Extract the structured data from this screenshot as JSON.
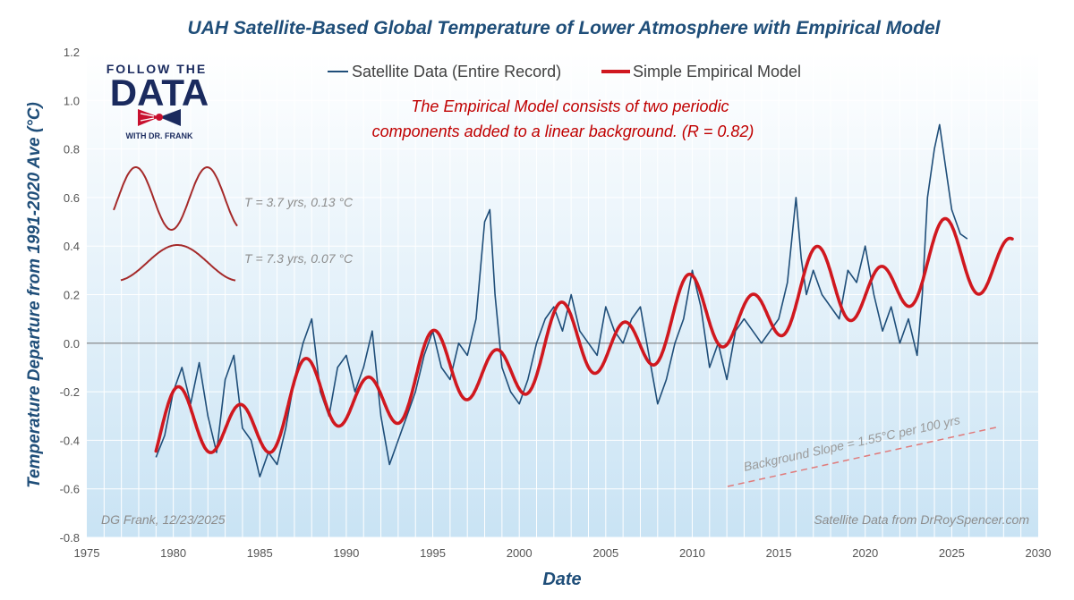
{
  "colors": {
    "satellite": "#1f4e79",
    "model": "#d0181f",
    "annotation": "#c00000",
    "axis_title": "#1f4e79",
    "component": "#a52a2a",
    "slope_line": "#e07a7a",
    "plot_bg_top": "#ffffff",
    "plot_bg_bottom": "#c9e3f4",
    "logo_navy": "#1a2a5e",
    "logo_red": "#c8102e"
  },
  "logo": {
    "top_text": "FOLLOW THE",
    "main_text": "DATA",
    "bottom_text": "WITH DR. FRANK"
  },
  "chart_data": {
    "type": "line",
    "title": "UAH Satellite-Based Global Temperature of Lower Atmosphere with Empirical Model",
    "xlabel": "Date",
    "ylabel": "Temperature Departure from 1991-2020 Ave (°C)",
    "xlim": [
      1975,
      2030
    ],
    "ylim": [
      -0.8,
      1.2
    ],
    "x_ticks": [
      1975,
      1980,
      1985,
      1990,
      1995,
      2000,
      2005,
      2010,
      2015,
      2020,
      2025,
      2030
    ],
    "y_ticks": [
      -0.8,
      -0.6,
      -0.4,
      -0.2,
      0.0,
      0.2,
      0.4,
      0.6,
      0.8,
      1.0,
      1.2
    ],
    "y_tick_labels": [
      "-0.8",
      "-0.6",
      "-0.4",
      "-0.2",
      "0.0",
      "0.2",
      "0.4",
      "0.6",
      "0.8",
      "1.0",
      "1.2"
    ],
    "legend_position": "top-center",
    "series": [
      {
        "name": "Satellite Data (Entire Record)",
        "style": "thin-line",
        "x": [
          1979.0,
          1979.5,
          1980.0,
          1980.5,
          1981.0,
          1981.5,
          1982.0,
          1982.5,
          1983.0,
          1983.5,
          1984.0,
          1984.5,
          1985.0,
          1985.5,
          1986.0,
          1986.5,
          1987.0,
          1987.5,
          1988.0,
          1988.5,
          1989.0,
          1989.5,
          1990.0,
          1990.5,
          1991.0,
          1991.5,
          1992.0,
          1992.5,
          1993.0,
          1993.5,
          1994.0,
          1994.5,
          1995.0,
          1995.5,
          1996.0,
          1996.5,
          1997.0,
          1997.5,
          1998.0,
          1998.3,
          1998.6,
          1999.0,
          1999.5,
          2000.0,
          2000.5,
          2001.0,
          2001.5,
          2002.0,
          2002.5,
          2003.0,
          2003.5,
          2004.0,
          2004.5,
          2005.0,
          2005.5,
          2006.0,
          2006.5,
          2007.0,
          2007.5,
          2008.0,
          2008.5,
          2009.0,
          2009.5,
          2010.0,
          2010.5,
          2011.0,
          2011.5,
          2012.0,
          2012.5,
          2013.0,
          2013.5,
          2014.0,
          2014.5,
          2015.0,
          2015.5,
          2016.0,
          2016.3,
          2016.6,
          2017.0,
          2017.5,
          2018.0,
          2018.5,
          2019.0,
          2019.5,
          2020.0,
          2020.5,
          2021.0,
          2021.5,
          2022.0,
          2022.5,
          2023.0,
          2023.3,
          2023.6,
          2024.0,
          2024.3,
          2024.6,
          2025.0,
          2025.5,
          2025.9
        ],
        "y": [
          -0.47,
          -0.38,
          -0.2,
          -0.1,
          -0.25,
          -0.08,
          -0.3,
          -0.45,
          -0.15,
          -0.05,
          -0.35,
          -0.4,
          -0.55,
          -0.45,
          -0.5,
          -0.35,
          -0.15,
          0.0,
          0.1,
          -0.2,
          -0.3,
          -0.1,
          -0.05,
          -0.2,
          -0.1,
          0.05,
          -0.3,
          -0.5,
          -0.4,
          -0.3,
          -0.2,
          -0.05,
          0.05,
          -0.1,
          -0.15,
          0.0,
          -0.05,
          0.1,
          0.5,
          0.55,
          0.2,
          -0.1,
          -0.2,
          -0.25,
          -0.15,
          0.0,
          0.1,
          0.15,
          0.05,
          0.2,
          0.05,
          0.0,
          -0.05,
          0.15,
          0.05,
          0.0,
          0.1,
          0.15,
          -0.05,
          -0.25,
          -0.15,
          0.0,
          0.1,
          0.3,
          0.15,
          -0.1,
          0.0,
          -0.15,
          0.05,
          0.1,
          0.05,
          0.0,
          0.05,
          0.1,
          0.25,
          0.6,
          0.35,
          0.2,
          0.3,
          0.2,
          0.15,
          0.1,
          0.3,
          0.25,
          0.4,
          0.2,
          0.05,
          0.15,
          0.0,
          0.1,
          -0.05,
          0.2,
          0.6,
          0.8,
          0.9,
          0.75,
          0.55,
          0.45,
          0.43
        ]
      },
      {
        "name": "Simple Empirical Model",
        "style": "thick-line",
        "model": {
          "x_start": 1979.0,
          "x_end": 2028.5,
          "linear_background": {
            "x0": 1996,
            "intercept": -0.13,
            "slope_per_year": 0.0155
          },
          "components": [
            {
              "period_years": 3.7,
              "amplitude": 0.13,
              "peak_year": 1991.3
            },
            {
              "period_years": 7.3,
              "amplitude": 0.07,
              "peak_year": 1988.0
            }
          ]
        }
      }
    ],
    "annotations": {
      "model_description_line1": "The Empirical Model consists of two periodic",
      "model_description_line2": "components added to a linear background. (R = 0.82)",
      "component_1_label": "T = 3.7 yrs, 0.13 °C",
      "component_2_label": "T = 7.3 yrs, 0.07 °C",
      "background_slope_label": "Background Slope = 1.55°C per 100 yrs",
      "author_label": "DG Frank, 12/23/2025",
      "source_label": "Satellite Data from DrRoySpencer.com"
    }
  }
}
